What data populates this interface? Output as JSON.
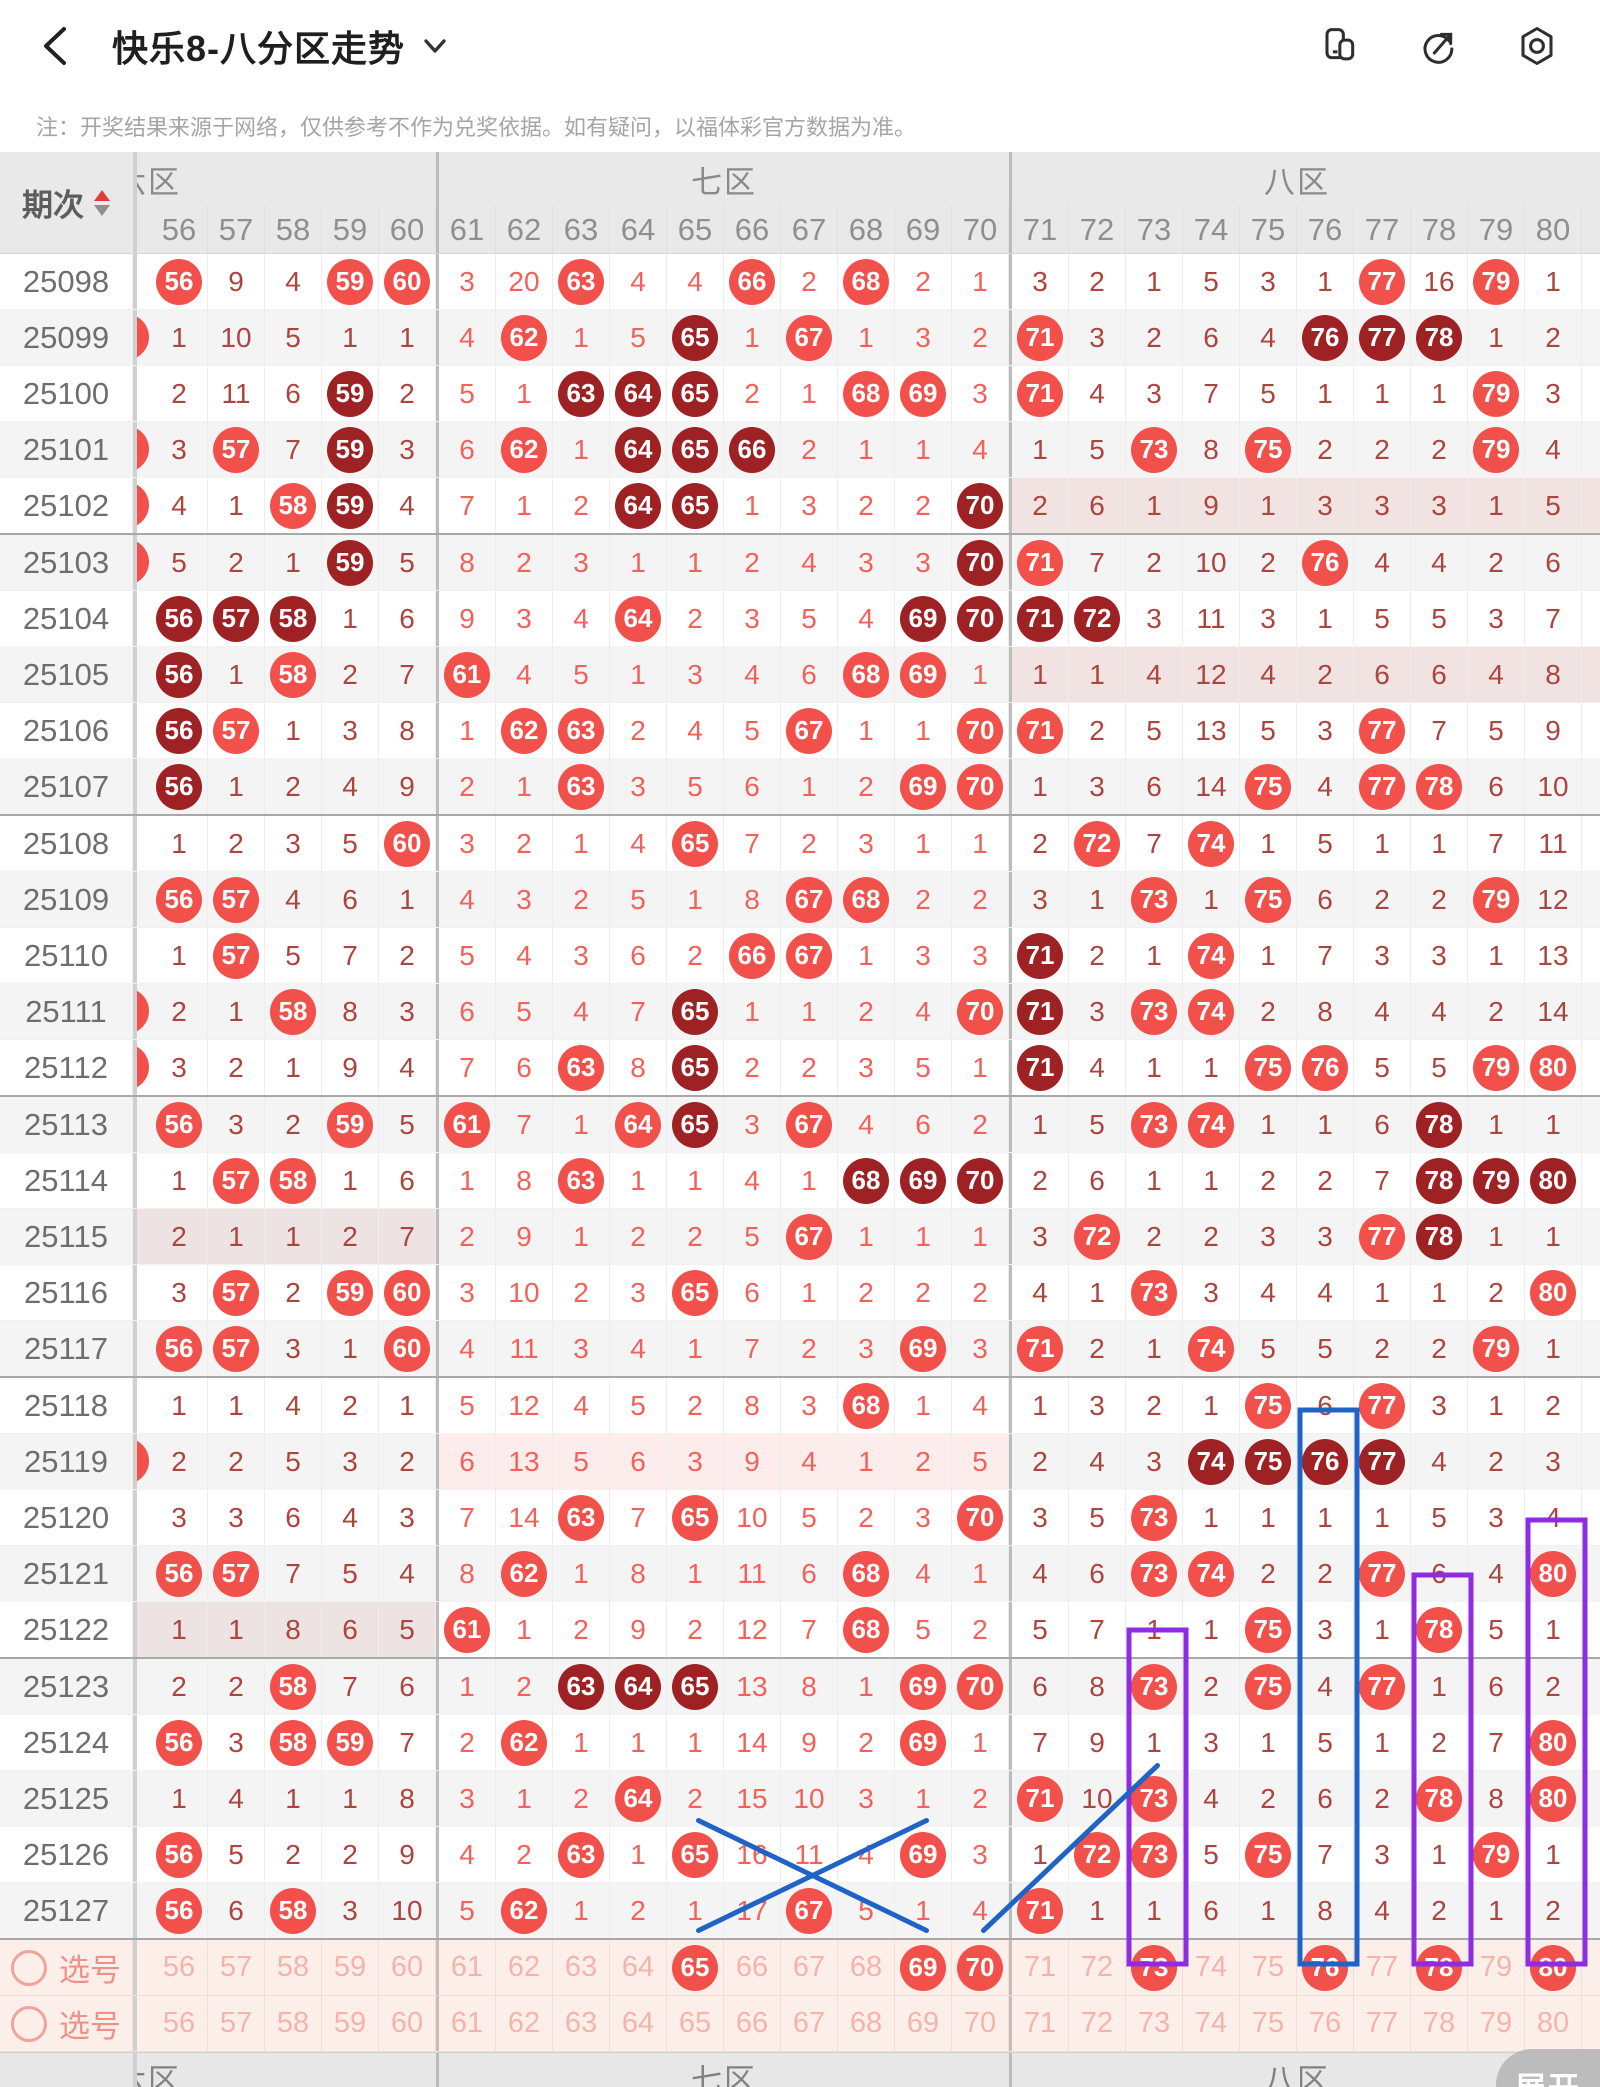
{
  "topbar": {
    "title": "快乐8-八分区走势",
    "icons": {
      "back": "chevron-left",
      "dropdown": "chevron-down",
      "mirror": "copy-pages",
      "share": "share-arrow-circle",
      "settings": "gear-hexagon"
    }
  },
  "note": "注：开奖结果来源于网络，仅供参考不作为兑奖依据。如有疑问，以福体彩官方数据为准。",
  "header": {
    "period_label": "期次",
    "zones": [
      {
        "label": "六区",
        "clipped": true,
        "cols": 5
      },
      {
        "label": "七区",
        "clipped": false,
        "cols": 10
      },
      {
        "label": "八区",
        "clipped": false,
        "cols": 10
      }
    ],
    "columns": [
      56,
      57,
      58,
      59,
      60,
      61,
      62,
      63,
      64,
      65,
      66,
      67,
      68,
      69,
      70,
      71,
      72,
      73,
      74,
      75,
      76,
      77,
      78,
      79,
      80
    ]
  },
  "colors": {
    "ball_light": "#f2504b",
    "ball_dark": "#9e2124",
    "miss_dark": "#ad453f",
    "miss_bright": "#f2625b",
    "row_alt": "#f4f4f4",
    "band_eight": "#f1e3e2",
    "band_six": "#ece3e2",
    "band_seven": "#fdecec",
    "select_bg": "#fcefe9",
    "box_blue": "#1e63c5",
    "box_purple": "#8d2ce0",
    "line_blue": "#1e63c5"
  },
  "rows": [
    {
      "p": "25098",
      "s": "",
      "c": [
        "L",
        "9",
        "4",
        "L",
        "L",
        "3",
        "20",
        "L",
        "4",
        "4",
        "L",
        "2",
        "L",
        "2",
        "1",
        "3",
        "2",
        "1",
        "5",
        "3",
        "1",
        "L",
        "16",
        "L",
        "1"
      ]
    },
    {
      "p": "25099",
      "s": "L",
      "c": [
        "1",
        "10",
        "5",
        "1",
        "1",
        "4",
        "L",
        "1",
        "5",
        "D",
        "1",
        "L",
        "1",
        "3",
        "2",
        "L",
        "3",
        "2",
        "6",
        "4",
        "D",
        "D",
        "D",
        "1",
        "2"
      ]
    },
    {
      "p": "25100",
      "s": "",
      "c": [
        "2",
        "11",
        "6",
        "D",
        "2",
        "5",
        "1",
        "D",
        "D",
        "D",
        "2",
        "1",
        "L",
        "L",
        "3",
        "L",
        "4",
        "3",
        "7",
        "5",
        "1",
        "1",
        "1",
        "L",
        "3"
      ]
    },
    {
      "p": "25101",
      "s": "L",
      "c": [
        "3",
        "L",
        "7",
        "D",
        "3",
        "6",
        "L",
        "1",
        "D",
        "D",
        "D",
        "2",
        "1",
        "1",
        "4",
        "1",
        "5",
        "L",
        "8",
        "L",
        "2",
        "2",
        "2",
        "L",
        "4"
      ]
    },
    {
      "p": "25102",
      "s": "L",
      "c": [
        "4",
        "1",
        "L",
        "D",
        "4",
        "7",
        "1",
        "2",
        "D",
        "D",
        "1",
        "3",
        "2",
        "2",
        "D",
        "2",
        "6",
        "1",
        "9",
        "1",
        "3",
        "3",
        "3",
        "1",
        "5"
      ],
      "band": [
        71,
        80,
        "#f1e3e2"
      ]
    },
    {
      "p": "25103",
      "s": "L",
      "c": [
        "5",
        "2",
        "1",
        "D",
        "5",
        "8",
        "2",
        "3",
        "1",
        "1",
        "2",
        "4",
        "3",
        "3",
        "D",
        "L",
        "7",
        "2",
        "10",
        "2",
        "L",
        "4",
        "4",
        "2",
        "6"
      ]
    },
    {
      "p": "25104",
      "s": "",
      "c": [
        "D",
        "D",
        "D",
        "1",
        "6",
        "9",
        "3",
        "4",
        "L",
        "2",
        "3",
        "5",
        "4",
        "D",
        "D",
        "D",
        "D",
        "3",
        "11",
        "3",
        "1",
        "5",
        "5",
        "3",
        "7"
      ]
    },
    {
      "p": "25105",
      "s": "",
      "c": [
        "D",
        "1",
        "L",
        "2",
        "7",
        "L",
        "4",
        "5",
        "1",
        "3",
        "4",
        "6",
        "L",
        "L",
        "1",
        "1",
        "1",
        "4",
        "12",
        "4",
        "2",
        "6",
        "6",
        "4",
        "8"
      ],
      "band": [
        71,
        80,
        "#f1e3e2"
      ]
    },
    {
      "p": "25106",
      "s": "",
      "c": [
        "D",
        "L",
        "1",
        "3",
        "8",
        "1",
        "L",
        "L",
        "2",
        "4",
        "5",
        "L",
        "1",
        "1",
        "L",
        "L",
        "2",
        "5",
        "13",
        "5",
        "3",
        "L",
        "7",
        "5",
        "9"
      ]
    },
    {
      "p": "25107",
      "s": "",
      "c": [
        "D",
        "1",
        "2",
        "4",
        "9",
        "2",
        "1",
        "L",
        "3",
        "5",
        "6",
        "1",
        "2",
        "L",
        "L",
        "1",
        "3",
        "6",
        "14",
        "L",
        "4",
        "L",
        "L",
        "6",
        "10"
      ]
    },
    {
      "p": "25108",
      "s": "",
      "c": [
        "1",
        "2",
        "3",
        "5",
        "L",
        "3",
        "2",
        "1",
        "4",
        "L",
        "7",
        "2",
        "3",
        "1",
        "1",
        "2",
        "L",
        "7",
        "L",
        "1",
        "5",
        "1",
        "1",
        "7",
        "11"
      ]
    },
    {
      "p": "25109",
      "s": "",
      "c": [
        "L",
        "L",
        "4",
        "6",
        "1",
        "4",
        "3",
        "2",
        "5",
        "1",
        "8",
        "L",
        "L",
        "2",
        "2",
        "3",
        "1",
        "L",
        "1",
        "L",
        "6",
        "2",
        "2",
        "L",
        "12"
      ]
    },
    {
      "p": "25110",
      "s": "",
      "c": [
        "1",
        "L",
        "5",
        "7",
        "2",
        "5",
        "4",
        "3",
        "6",
        "2",
        "L",
        "L",
        "1",
        "3",
        "3",
        "D",
        "2",
        "1",
        "L",
        "1",
        "7",
        "3",
        "3",
        "1",
        "13"
      ]
    },
    {
      "p": "25111",
      "s": "L",
      "c": [
        "2",
        "1",
        "L",
        "8",
        "3",
        "6",
        "5",
        "4",
        "7",
        "D",
        "1",
        "1",
        "2",
        "4",
        "L",
        "D",
        "3",
        "L",
        "L",
        "2",
        "8",
        "4",
        "4",
        "2",
        "14"
      ]
    },
    {
      "p": "25112",
      "s": "L",
      "c": [
        "3",
        "2",
        "1",
        "9",
        "4",
        "7",
        "6",
        "L",
        "8",
        "D",
        "2",
        "2",
        "3",
        "5",
        "1",
        "D",
        "4",
        "1",
        "1",
        "L",
        "L",
        "5",
        "5",
        "L",
        "L"
      ]
    },
    {
      "p": "25113",
      "s": "",
      "c": [
        "L",
        "3",
        "2",
        "L",
        "5",
        "L",
        "7",
        "1",
        "L",
        "D",
        "3",
        "L",
        "4",
        "6",
        "2",
        "1",
        "5",
        "L",
        "L",
        "1",
        "1",
        "6",
        "D",
        "1",
        "1"
      ]
    },
    {
      "p": "25114",
      "s": "",
      "c": [
        "1",
        "L",
        "L",
        "1",
        "6",
        "1",
        "8",
        "L",
        "1",
        "1",
        "4",
        "1",
        "D",
        "D",
        "D",
        "2",
        "6",
        "1",
        "1",
        "2",
        "2",
        "7",
        "D",
        "D",
        "D"
      ]
    },
    {
      "p": "25115",
      "s": "",
      "c": [
        "2",
        "1",
        "1",
        "2",
        "7",
        "2",
        "9",
        "1",
        "2",
        "2",
        "5",
        "L",
        "1",
        "1",
        "1",
        "3",
        "L",
        "2",
        "2",
        "3",
        "3",
        "L",
        "D",
        "1",
        "1"
      ],
      "band": [
        56,
        60,
        "#ece3e2"
      ]
    },
    {
      "p": "25116",
      "s": "",
      "c": [
        "3",
        "L",
        "2",
        "L",
        "L",
        "3",
        "10",
        "2",
        "3",
        "L",
        "6",
        "1",
        "2",
        "2",
        "2",
        "4",
        "1",
        "L",
        "3",
        "4",
        "4",
        "1",
        "1",
        "2",
        "L"
      ]
    },
    {
      "p": "25117",
      "s": "",
      "c": [
        "L",
        "L",
        "3",
        "1",
        "L",
        "4",
        "11",
        "3",
        "4",
        "1",
        "7",
        "2",
        "3",
        "L",
        "3",
        "L",
        "2",
        "1",
        "L",
        "5",
        "5",
        "2",
        "2",
        "L",
        "1"
      ]
    },
    {
      "p": "25118",
      "s": "",
      "c": [
        "1",
        "1",
        "4",
        "2",
        "1",
        "5",
        "12",
        "4",
        "5",
        "2",
        "8",
        "3",
        "L",
        "1",
        "4",
        "1",
        "3",
        "2",
        "1",
        "L",
        "6",
        "L",
        "3",
        "1",
        "2"
      ]
    },
    {
      "p": "25119",
      "s": "L",
      "c": [
        "2",
        "2",
        "5",
        "3",
        "2",
        "6",
        "13",
        "5",
        "6",
        "3",
        "9",
        "4",
        "1",
        "2",
        "5",
        "2",
        "4",
        "3",
        "D",
        "D",
        "D",
        "D",
        "4",
        "2",
        "3"
      ],
      "band": [
        61,
        70,
        "#fdecec"
      ]
    },
    {
      "p": "25120",
      "s": "",
      "c": [
        "3",
        "3",
        "6",
        "4",
        "3",
        "7",
        "14",
        "L",
        "7",
        "L",
        "10",
        "5",
        "2",
        "3",
        "L",
        "3",
        "5",
        "L",
        "1",
        "1",
        "1",
        "1",
        "5",
        "3",
        "4"
      ]
    },
    {
      "p": "25121",
      "s": "",
      "c": [
        "L",
        "L",
        "7",
        "5",
        "4",
        "8",
        "L",
        "1",
        "8",
        "1",
        "11",
        "6",
        "L",
        "4",
        "1",
        "4",
        "6",
        "L",
        "L",
        "2",
        "2",
        "L",
        "6",
        "4",
        "L"
      ]
    },
    {
      "p": "25122",
      "s": "",
      "c": [
        "1",
        "1",
        "8",
        "6",
        "5",
        "L",
        "1",
        "2",
        "9",
        "2",
        "12",
        "7",
        "L",
        "5",
        "2",
        "5",
        "7",
        "1",
        "1",
        "L",
        "3",
        "1",
        "L",
        "5",
        "1"
      ],
      "band": [
        56,
        60,
        "#ece3e2"
      ]
    },
    {
      "p": "25123",
      "s": "",
      "c": [
        "2",
        "2",
        "L",
        "7",
        "6",
        "1",
        "2",
        "D",
        "D",
        "D",
        "13",
        "8",
        "1",
        "L",
        "L",
        "6",
        "8",
        "L",
        "2",
        "L",
        "4",
        "L",
        "1",
        "6",
        "2"
      ]
    },
    {
      "p": "25124",
      "s": "",
      "c": [
        "L",
        "3",
        "L",
        "L",
        "7",
        "2",
        "L",
        "1",
        "1",
        "1",
        "14",
        "9",
        "2",
        "L",
        "1",
        "7",
        "9",
        "1",
        "3",
        "1",
        "5",
        "1",
        "2",
        "7",
        "L"
      ]
    },
    {
      "p": "25125",
      "s": "",
      "c": [
        "1",
        "4",
        "1",
        "1",
        "8",
        "3",
        "1",
        "2",
        "L",
        "2",
        "15",
        "10",
        "3",
        "1",
        "2",
        "L",
        "10",
        "L",
        "4",
        "2",
        "6",
        "2",
        "L",
        "8",
        "L"
      ]
    },
    {
      "p": "25126",
      "s": "",
      "c": [
        "L",
        "5",
        "2",
        "2",
        "9",
        "4",
        "2",
        "L",
        "1",
        "L",
        "16",
        "11",
        "4",
        "L",
        "3",
        "1",
        "L",
        "L",
        "5",
        "L",
        "7",
        "3",
        "1",
        "L",
        "1"
      ]
    },
    {
      "p": "25127",
      "s": "",
      "c": [
        "L",
        "6",
        "L",
        "3",
        "10",
        "5",
        "L",
        "1",
        "2",
        "1",
        "17",
        "L",
        "5",
        "1",
        "4",
        "L",
        "1",
        "1",
        "6",
        "1",
        "8",
        "4",
        "2",
        "1",
        "2"
      ]
    }
  ],
  "select_rows": [
    {
      "label": "选号",
      "selected": [
        65,
        69,
        70,
        73,
        76,
        78,
        80
      ]
    },
    {
      "label": "选号",
      "selected": []
    }
  ],
  "annotations": {
    "boxes": [
      {
        "col": 76,
        "from_row": 21,
        "color": "#1e63c5"
      },
      {
        "col": 80,
        "from_row": 23,
        "color": "#8d2ce0"
      },
      {
        "col": 78,
        "from_row": 24,
        "color": "#8d2ce0"
      },
      {
        "col": 73,
        "from_row": 25,
        "color": "#8d2ce0"
      }
    ],
    "lines": [
      {
        "from": {
          "row": 28,
          "col": 65
        },
        "to": {
          "row": "S",
          "col": 69
        }
      },
      {
        "from": {
          "row": 28,
          "col": 69
        },
        "to": {
          "row": "S",
          "col": 65
        }
      },
      {
        "from": {
          "row": "S",
          "col": 70
        },
        "to": {
          "row": 27,
          "col": 73
        }
      }
    ]
  },
  "footer": {
    "zones": [
      "六区",
      "七区",
      "八区"
    ],
    "dash": "-",
    "expand_label": "展开",
    "bottom_columns": [
      56,
      57,
      58,
      59,
      60,
      61,
      62,
      63,
      64,
      65,
      66,
      67,
      68,
      69,
      70,
      71,
      72,
      73,
      74,
      75,
      76,
      77,
      78,
      79,
      80
    ]
  }
}
